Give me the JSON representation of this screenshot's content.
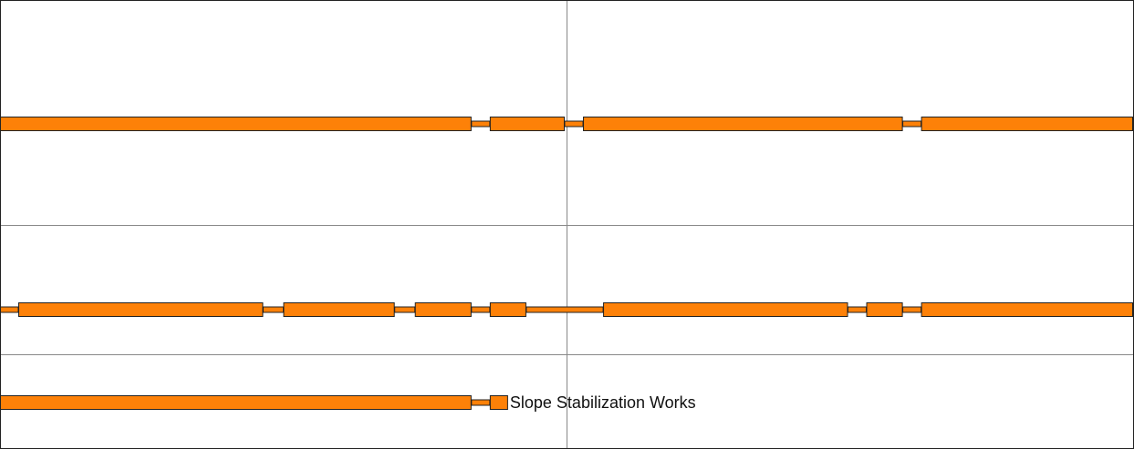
{
  "chart_data": {
    "type": "bar",
    "subtype": "gantt",
    "x_range": [
      0,
      62
    ],
    "x_gridlines": [
      31
    ],
    "grid": true,
    "legend": "none",
    "colors": {
      "bar": "#fd8108",
      "outline": "#222222",
      "grid": "#888888"
    },
    "rows": [
      {
        "segments": [
          [
            0,
            25.8
          ],
          [
            26.8,
            30.9
          ],
          [
            31.9,
            49.4
          ],
          [
            50.4,
            62
          ]
        ],
        "label": ""
      },
      {
        "segments": [
          [
            1.0,
            14.4
          ],
          [
            15.5,
            21.6
          ],
          [
            22.7,
            25.8
          ],
          [
            26.8,
            28.8
          ],
          [
            33.0,
            46.4
          ],
          [
            47.4,
            49.4
          ],
          [
            50.4,
            62
          ]
        ],
        "label": ""
      },
      {
        "segments": [
          [
            0,
            25.8
          ],
          [
            26.8,
            27.8
          ]
        ],
        "label": "Slope Stabilization Works"
      }
    ]
  }
}
